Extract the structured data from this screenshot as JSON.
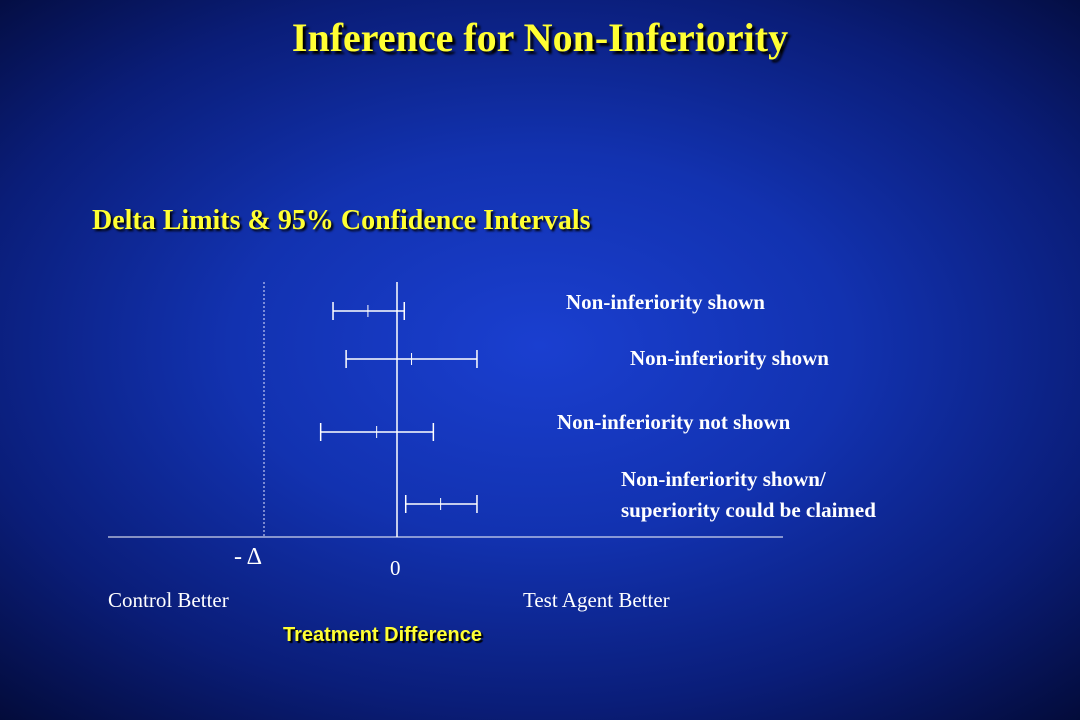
{
  "slide": {
    "title": "Inference for Non-Inferiority",
    "subtitle": "Delta Limits & 95% Confidence Intervals"
  },
  "diagram": {
    "intervals": [
      {
        "label": "Non-inferiority shown",
        "lower": 0.12,
        "estimate": 0.6,
        "upper": 1.1
      },
      {
        "label": "Non-inferiority shown",
        "lower": 0.3,
        "estimate": 1.2,
        "upper": 2.1
      },
      {
        "label": "Non-inferiority not shown",
        "lower": -0.05,
        "estimate": 0.72,
        "upper": 1.5
      },
      {
        "label_lines": [
          "Non-inferiority shown/",
          "superiority could be claimed"
        ],
        "lower": 1.12,
        "estimate": 1.6,
        "upper": 2.1
      }
    ],
    "delta_label": "- Δ",
    "zero_label": "0",
    "left_end_label": "Control Better",
    "right_end_label": "Test Agent Better",
    "axis_title": "Treatment Difference",
    "colors": {
      "title": "#ffff33",
      "lines": "#ffffff",
      "background": "#1232b0"
    }
  }
}
